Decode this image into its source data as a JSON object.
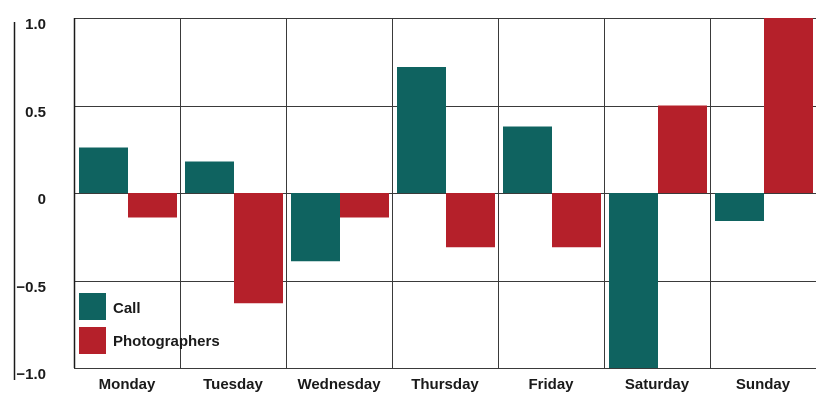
{
  "chart_data": {
    "type": "bar",
    "title": "",
    "xlabel": "",
    "ylabel": "",
    "categories": [
      "Monday",
      "Tuesday",
      "Wednesday",
      "Thursday",
      "Friday",
      "Saturday",
      "Sunday"
    ],
    "series": [
      {
        "name": "Call",
        "color": "#0f6360",
        "values": [
          0.26,
          0.18,
          -0.39,
          0.72,
          0.38,
          -1.0,
          -0.16
        ]
      },
      {
        "name": "Photographers",
        "color": "#b5202a",
        "values": [
          -0.14,
          -0.63,
          -0.14,
          -0.31,
          -0.31,
          0.5,
          1.0
        ]
      }
    ],
    "ylim": [
      -1.0,
      1.0
    ],
    "yticks": [
      "1.0",
      "0.5",
      "0",
      "−0.5",
      "−1.0"
    ],
    "ytick_values": [
      1.0,
      0.5,
      0,
      -0.5,
      -1.0
    ],
    "grid": true,
    "legend_position": "bottom-left"
  }
}
